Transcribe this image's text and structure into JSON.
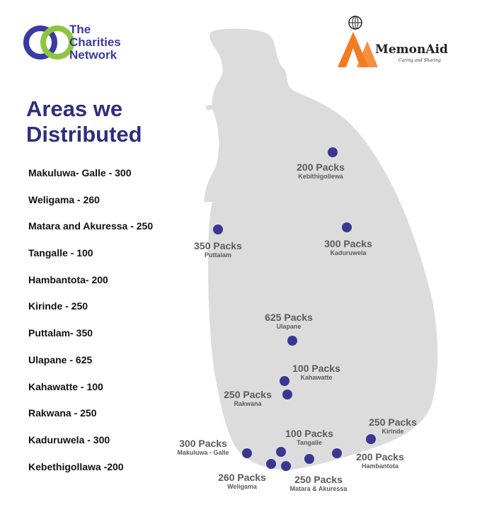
{
  "header": {
    "org_name_line1": "The",
    "org_name_line2": "Charities",
    "org_name_line3": "Network",
    "partner_name": "MemonAid",
    "partner_tagline": "Caring and Sharing"
  },
  "title_line1": "Areas we",
  "title_line2": "Distributed",
  "distribution_list": [
    "Makuluwa- Galle - 300",
    "Weligama - 260",
    "Matara and Akuressa - 250",
    "Tangalle - 100",
    "Hambantota- 200",
    "Kirinde - 250",
    "Puttalam- 350",
    "Ulapane - 625",
    "Kahawatte - 100",
    "Rakwana - 250",
    "Kaduruwela - 300",
    "Kebethigollawa -200"
  ],
  "map_labels": [
    {
      "packs": "200 Packs",
      "place": "Kebithigollewa"
    },
    {
      "packs": "350 Packs",
      "place": "Puttalam"
    },
    {
      "packs": "300 Packs",
      "place": "Kaduruwela"
    },
    {
      "packs": "625 Packs",
      "place": "Ulapane"
    },
    {
      "packs": "100 Packs",
      "place": "Kahawatte"
    },
    {
      "packs": "250 Packs",
      "place": "Rakwana"
    },
    {
      "packs": "250 Packs",
      "place": "Kirinde"
    },
    {
      "packs": "300 Packs",
      "place": "Makuluwa - Galle"
    },
    {
      "packs": "100 Packs",
      "place": "Tangalle"
    },
    {
      "packs": "200 Packs",
      "place": "Hambantota"
    },
    {
      "packs": "260 Packs",
      "place": "Weligama"
    },
    {
      "packs": "250 Packs",
      "place": "Matara & Akuressa"
    }
  ],
  "colors": {
    "title": "#2f2e7e",
    "marker": "#3a3791",
    "land": "#dcdcdc",
    "label": "#5b5b5b",
    "logo_blue": "#3b3aa0",
    "logo_green": "#8cc63f",
    "memon_orange": "#f47b20"
  }
}
